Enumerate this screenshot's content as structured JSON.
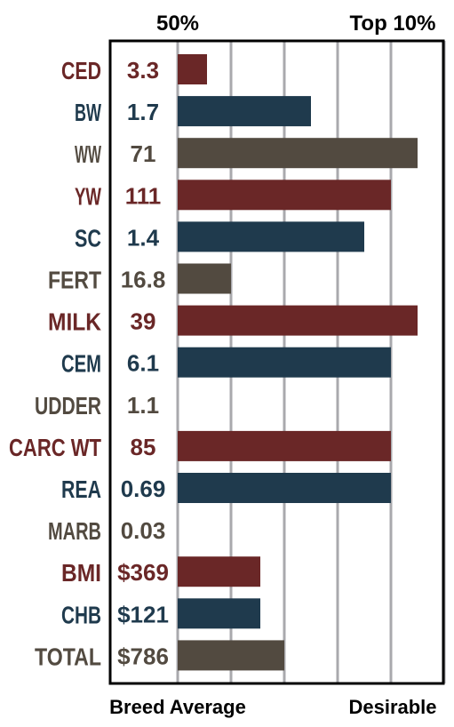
{
  "chart_data": {
    "type": "bar",
    "orientation": "horizontal",
    "top_labels": {
      "left": "50%",
      "right": "Top 10%"
    },
    "bottom_labels": {
      "left": "Breed Average",
      "right": "Desirable"
    },
    "scale": {
      "min": 0,
      "max": 5,
      "gridlines": [
        0,
        1,
        2,
        3,
        4,
        5
      ],
      "grid": true
    },
    "rows": [
      {
        "trait": "CED",
        "value_label": "3.3",
        "bar": 0.55,
        "color": "#6a2727"
      },
      {
        "trait": "BW",
        "value_label": "1.7",
        "bar": 2.5,
        "color": "#1f3a4d"
      },
      {
        "trait": "WW",
        "value_label": "71",
        "bar": 4.5,
        "color": "#524a40"
      },
      {
        "trait": "YW",
        "value_label": "111",
        "bar": 4.0,
        "color": "#6a2727"
      },
      {
        "trait": "SC",
        "value_label": "1.4",
        "bar": 3.5,
        "color": "#1f3a4d"
      },
      {
        "trait": "FERT",
        "value_label": "16.8",
        "bar": 1.0,
        "color": "#524a40"
      },
      {
        "trait": "MILK",
        "value_label": "39",
        "bar": 4.5,
        "color": "#6a2727"
      },
      {
        "trait": "CEM",
        "value_label": "6.1",
        "bar": 4.0,
        "color": "#1f3a4d"
      },
      {
        "trait": "UDDER",
        "value_label": "1.1",
        "bar": 0,
        "color": "#524a40"
      },
      {
        "trait": "CARC WT",
        "value_label": "85",
        "bar": 4.0,
        "color": "#6a2727"
      },
      {
        "trait": "REA",
        "value_label": "0.69",
        "bar": 4.0,
        "color": "#1f3a4d"
      },
      {
        "trait": "MARB",
        "value_label": "0.03",
        "bar": 0,
        "color": "#524a40"
      },
      {
        "trait": "BMI",
        "value_label": "$369",
        "bar": 1.55,
        "color": "#6a2727"
      },
      {
        "trait": "CHB",
        "value_label": "$121",
        "bar": 1.55,
        "color": "#1f3a4d"
      },
      {
        "trait": "TOTAL",
        "value_label": "$786",
        "bar": 2.0,
        "color": "#524a40"
      }
    ]
  }
}
